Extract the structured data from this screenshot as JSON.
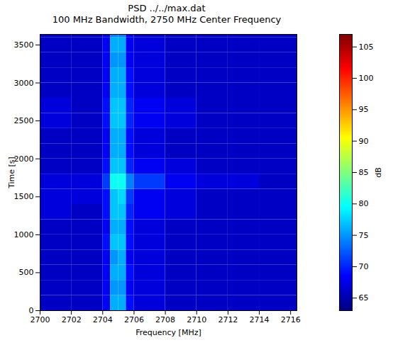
{
  "chart_data": {
    "type": "heatmap",
    "title": "PSD ../../max.dat",
    "subtitle": "100 MHz Bandwidth, 2750 MHz Center Frequency",
    "x_label": "Frequency [MHz]",
    "y_label": "Time [s]",
    "xlim": [
      2700,
      2716.4
    ],
    "xticks": [
      2700,
      2702,
      2704,
      2706,
      2708,
      2710,
      2712,
      2714,
      2716
    ],
    "ylim": [
      0,
      3640
    ],
    "yticks": [
      0,
      500,
      1000,
      1500,
      2000,
      2500,
      3000,
      3500
    ],
    "x_edges": [
      2700,
      2702,
      2704,
      2704.5,
      2705,
      2705.5,
      2706,
      2708,
      2710,
      2712,
      2714,
      2716.4
    ],
    "y_edges": [
      0,
      200,
      400,
      600,
      800,
      1000,
      1200,
      1400,
      1600,
      1800,
      2000,
      2200,
      2400,
      2600,
      2800,
      3000,
      3200,
      3400,
      3600,
      3640
    ],
    "cells": [
      [
        66,
        66,
        68,
        76,
        76,
        69,
        67,
        66,
        66,
        66,
        66
      ],
      [
        66,
        66,
        68,
        75,
        75,
        68,
        67,
        66,
        66,
        66,
        66
      ],
      [
        66,
        66,
        68,
        76,
        76,
        69,
        67,
        66,
        66,
        66,
        66
      ],
      [
        66,
        66,
        68,
        75,
        76,
        68,
        67,
        66,
        66,
        66,
        66
      ],
      [
        66,
        66,
        69,
        77,
        77,
        69,
        67,
        66,
        66,
        66,
        66
      ],
      [
        66,
        66,
        68,
        76,
        76,
        69,
        67,
        66,
        66,
        66,
        66
      ],
      [
        67,
        66,
        69,
        77,
        77,
        70,
        68,
        67,
        66,
        66,
        66
      ],
      [
        67,
        67,
        69,
        77,
        78,
        71,
        68,
        67,
        66,
        66,
        66
      ],
      [
        67,
        67,
        71,
        80,
        80,
        74,
        71,
        68,
        67,
        67,
        66
      ],
      [
        66,
        66,
        69,
        77,
        77,
        70,
        68,
        67,
        66,
        66,
        66
      ],
      [
        66,
        66,
        68,
        76,
        76,
        69,
        67,
        66,
        66,
        66,
        66
      ],
      [
        66,
        66,
        68,
        76,
        76,
        69,
        67,
        66,
        66,
        66,
        66
      ],
      [
        67,
        66,
        69,
        77,
        77,
        70,
        68,
        67,
        66,
        66,
        66
      ],
      [
        67,
        66,
        69,
        77,
        77,
        70,
        68,
        67,
        66,
        66,
        66
      ],
      [
        66,
        66,
        68,
        76,
        76,
        69,
        67,
        66,
        66,
        66,
        66
      ],
      [
        66,
        66,
        68,
        76,
        76,
        69,
        67,
        66,
        66,
        66,
        66
      ],
      [
        66,
        66,
        68,
        75,
        75,
        68,
        67,
        66,
        66,
        66,
        66
      ],
      [
        66,
        66,
        68,
        76,
        76,
        68,
        67,
        66,
        66,
        66,
        66
      ],
      [
        66,
        66,
        67,
        74,
        74,
        68,
        66,
        66,
        66,
        66,
        66
      ]
    ],
    "colorbar": {
      "label": "dB",
      "range": [
        63,
        107
      ],
      "ticks": [
        65,
        70,
        75,
        80,
        85,
        90,
        95,
        100,
        105
      ]
    }
  }
}
